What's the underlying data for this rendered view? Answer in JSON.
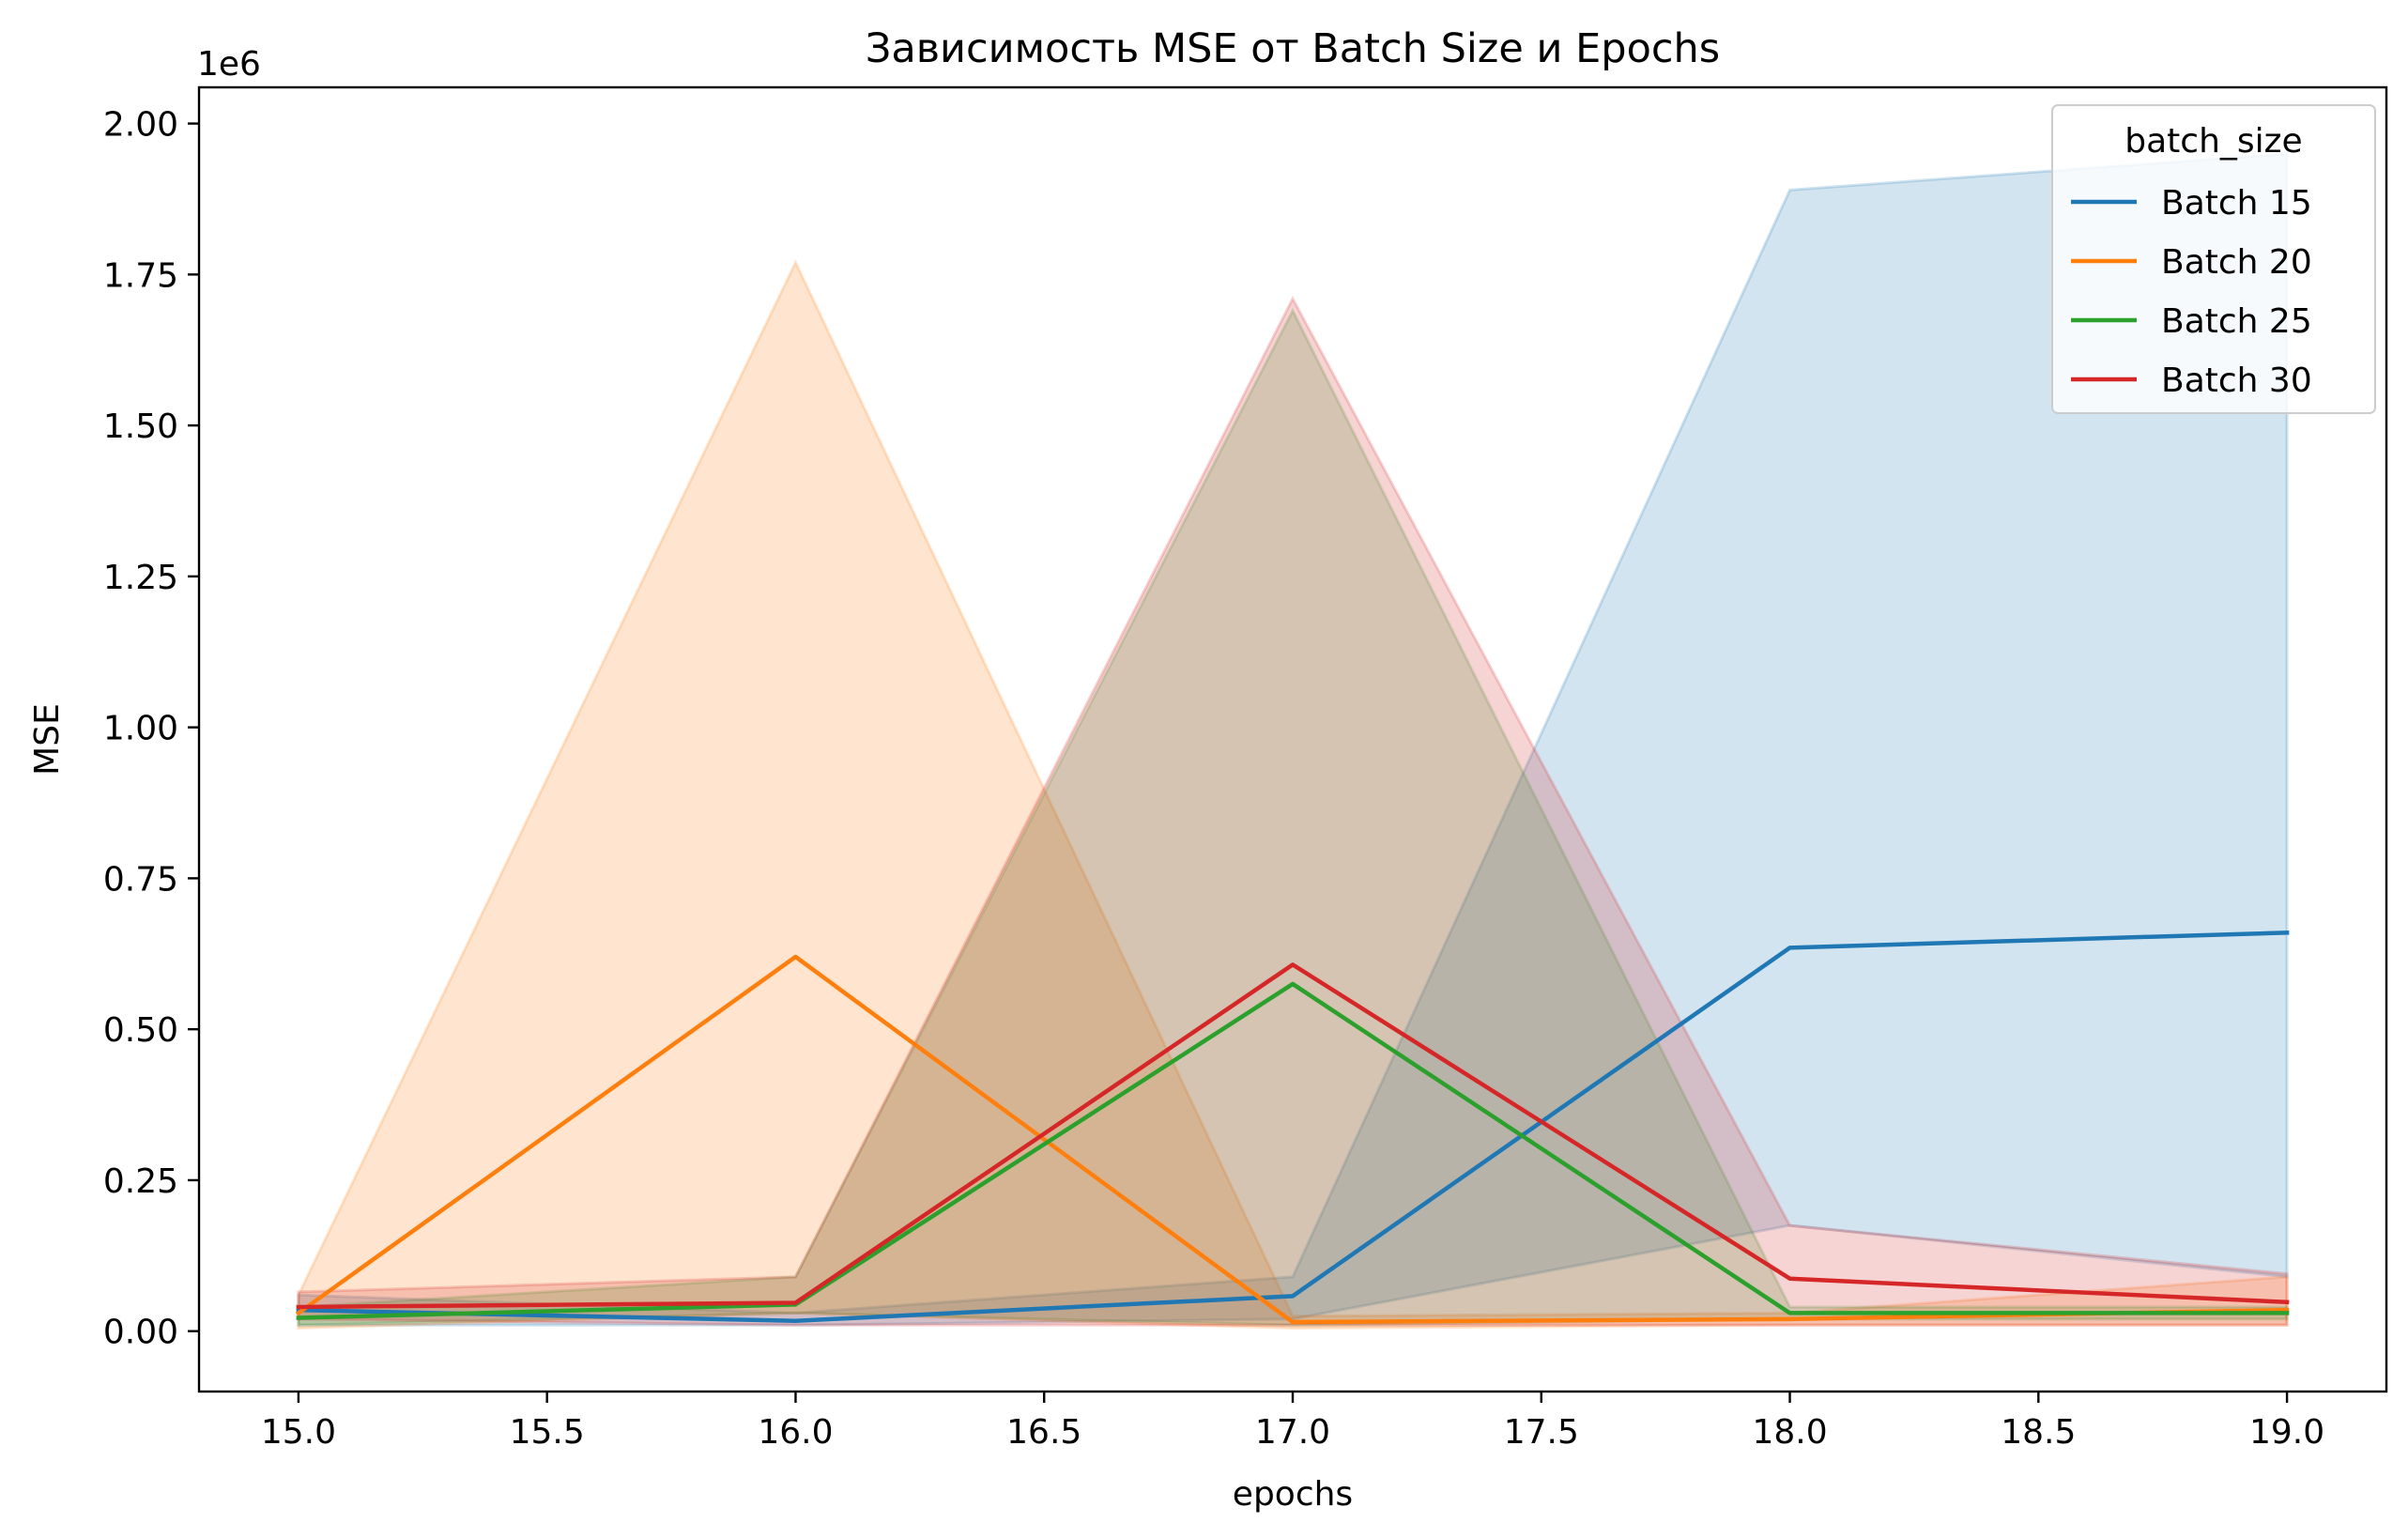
{
  "chart_data": {
    "type": "line",
    "title": "Зависимость MSE от Batch Size и Epochs",
    "xlabel": "epochs",
    "ylabel": "MSE",
    "y_offset_label": "1e6",
    "y_scale_factor": 1000000,
    "xlim": [
      14.8,
      19.2
    ],
    "ylim": [
      -0.1,
      2.06
    ],
    "x_ticks": [
      15.0,
      15.5,
      16.0,
      16.5,
      17.0,
      17.5,
      18.0,
      18.5,
      19.0
    ],
    "x_tick_labels": [
      "15.0",
      "15.5",
      "16.0",
      "16.5",
      "17.0",
      "17.5",
      "18.0",
      "18.5",
      "19.0"
    ],
    "y_ticks": [
      0.0,
      0.25,
      0.5,
      0.75,
      1.0,
      1.25,
      1.5,
      1.75,
      2.0
    ],
    "y_tick_labels": [
      "0.00",
      "0.25",
      "0.50",
      "0.75",
      "1.00",
      "1.25",
      "1.50",
      "1.75",
      "2.00"
    ],
    "grid": false,
    "legend_title": "batch_size",
    "legend_placement": "top-right",
    "x": [
      15,
      16,
      17,
      18,
      19
    ],
    "series": [
      {
        "name": "Batch 15",
        "color": "#1f77b4",
        "values": [
          0.035,
          0.017,
          0.058,
          0.635,
          0.66
        ],
        "ci_low": [
          0.01,
          0.01,
          0.02,
          0.175,
          0.09
        ],
        "ci_high": [
          0.06,
          0.03,
          0.09,
          1.89,
          1.95
        ]
      },
      {
        "name": "Batch 20",
        "color": "#ff7f0e",
        "values": [
          0.03,
          0.62,
          0.015,
          0.02,
          0.035
        ],
        "ci_low": [
          0.005,
          0.03,
          0.005,
          0.01,
          0.01
        ],
        "ci_high": [
          0.06,
          1.77,
          0.025,
          0.03,
          0.09
        ]
      },
      {
        "name": "Batch 25",
        "color": "#2ca02c",
        "values": [
          0.022,
          0.044,
          0.575,
          0.03,
          0.03
        ],
        "ci_low": [
          0.01,
          0.03,
          0.01,
          0.02,
          0.02
        ],
        "ci_high": [
          0.04,
          0.09,
          1.69,
          0.04,
          0.04
        ]
      },
      {
        "name": "Batch 30",
        "color": "#d62728",
        "values": [
          0.04,
          0.047,
          0.607,
          0.087,
          0.048
        ],
        "ci_low": [
          0.02,
          0.01,
          0.01,
          0.01,
          0.01
        ],
        "ci_high": [
          0.065,
          0.09,
          1.71,
          0.175,
          0.095
        ]
      }
    ]
  }
}
